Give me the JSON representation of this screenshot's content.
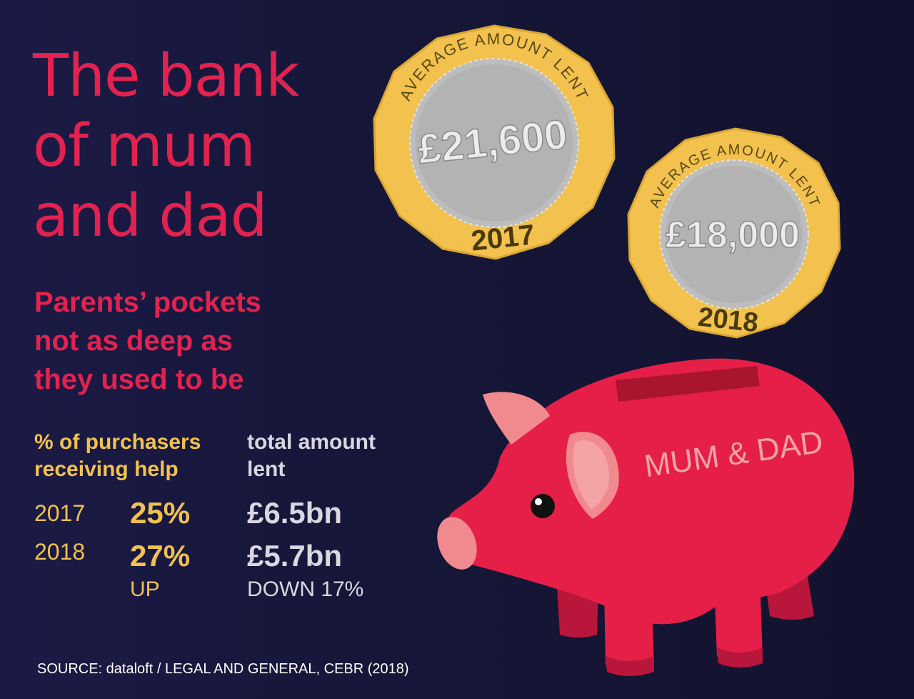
{
  "title_lines": [
    "The bank",
    "of mum",
    "and dad"
  ],
  "subtitle_lines": [
    "Parents’ pockets",
    "not as deep as",
    "they used to be"
  ],
  "stats": {
    "col1_header": [
      "% of purchasers",
      "receiving help"
    ],
    "col2_header": [
      "total amount",
      "lent"
    ],
    "rows": [
      {
        "year": "2017",
        "pct": "25%",
        "amount": "£6.5bn"
      },
      {
        "year": "2018",
        "pct": "27%",
        "amount": "£5.7bn"
      }
    ],
    "pct_change": "UP",
    "amount_change": "DOWN 17%"
  },
  "coins": [
    {
      "label": "AVERAGE AMOUNT LENT",
      "value": "£21,600",
      "year": "2017"
    },
    {
      "label": "AVERAGE AMOUNT LENT",
      "value": "£18,000",
      "year": "2018"
    }
  ],
  "piggy_label": "MUM & DAD",
  "source": "SOURCE: dataloft / LEGAL AND GENERAL, CEBR (2018)",
  "colors": {
    "background": "#161638",
    "accent_red": "#e2224f",
    "gold": "#f2c14e",
    "silver": "#bdbdbd",
    "pig": "#e61f48"
  }
}
